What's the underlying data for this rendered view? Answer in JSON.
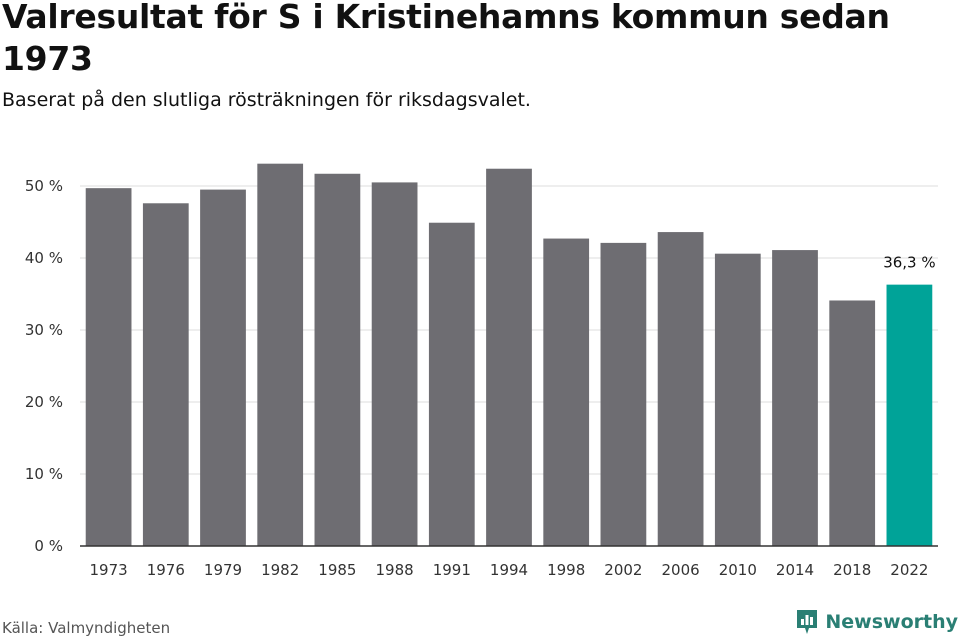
{
  "title": "Valresultat för S i Kristinehamns kommun sedan 1973",
  "subtitle": "Baserat på den slutliga rösträkningen för riksdagsvalet.",
  "source": "Källa: Valmyndigheten",
  "brand": "Newsworthy",
  "colors": {
    "bar": "#6e6d72",
    "highlight": "#00a398",
    "grid": "#dddddd",
    "axis": "#333333",
    "brand": "#2a7f74"
  },
  "chart_data": {
    "type": "bar",
    "categories": [
      "1973",
      "1976",
      "1979",
      "1982",
      "1985",
      "1988",
      "1991",
      "1994",
      "1998",
      "2002",
      "2006",
      "2010",
      "2014",
      "2018",
      "2022"
    ],
    "values": [
      49.7,
      47.6,
      49.5,
      53.1,
      51.7,
      50.5,
      44.9,
      52.4,
      42.7,
      42.1,
      43.6,
      40.6,
      41.1,
      34.1,
      36.3
    ],
    "ylim": [
      0,
      55
    ],
    "yticks": [
      0,
      10,
      20,
      30,
      40,
      50
    ],
    "ytick_labels": [
      "0 %",
      "10 %",
      "20 %",
      "30 %",
      "40 %",
      "50 %"
    ],
    "highlight_index": 14,
    "data_labels": {
      "14": "36,3 %"
    },
    "grid": true,
    "xlabel": "",
    "ylabel": ""
  }
}
